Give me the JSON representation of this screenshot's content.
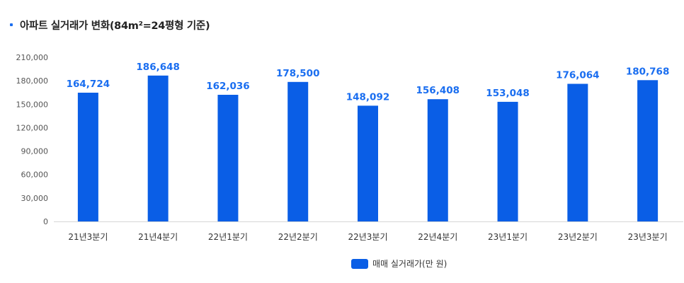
{
  "colors": {
    "accent": "#0a5ee6",
    "label": "#1a6ef0"
  },
  "chart_data": {
    "type": "bar",
    "title": "아파트 실거래가 변화(84m²=24평형 기준)",
    "categories": [
      "21년3분기",
      "21년4분기",
      "22년1분기",
      "22년2분기",
      "22년3분기",
      "22년4분기",
      "23년1분기",
      "23년2분기",
      "23년3분기"
    ],
    "series": [
      {
        "name": "매매 실거래가(만 원)",
        "values": [
          164724,
          186648,
          162036,
          178500,
          148092,
          156408,
          153048,
          176064,
          180768
        ]
      }
    ],
    "value_labels": [
      "164,724",
      "186,648",
      "162,036",
      "178,500",
      "148,092",
      "156,408",
      "153,048",
      "176,064",
      "180,768"
    ],
    "ylim": [
      0,
      210000
    ],
    "yticks": [
      "0",
      "30,000",
      "60,000",
      "90,000",
      "120,000",
      "150,000",
      "180,000",
      "210,000"
    ],
    "grid": false,
    "legend_position": "bottom-center"
  }
}
